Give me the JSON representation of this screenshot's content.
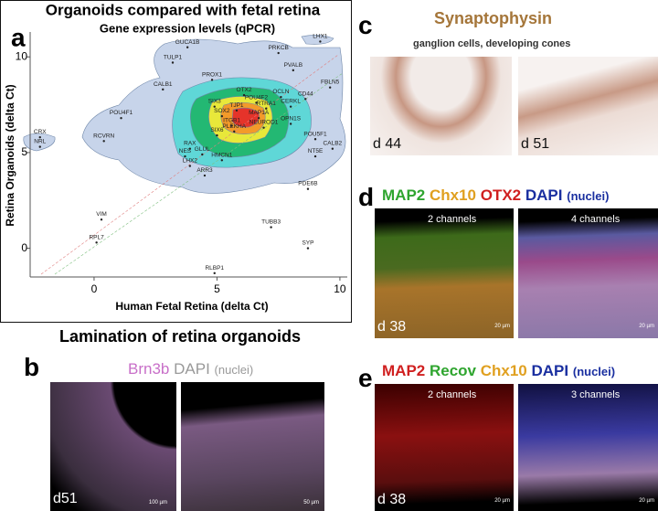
{
  "panel_labels": [
    "a",
    "b",
    "c",
    "d",
    "e"
  ],
  "chart_data": {
    "type": "scatter",
    "title": "Organoids compared with fetal retina",
    "subtitle": "Gene expression levels (qPCR)",
    "x_label": "Human Fetal Retina (delta Ct)",
    "y_label": "Retina Organoids (delta Ct)",
    "xlim": [
      -2.6,
      10.3
    ],
    "ylim": [
      -1.5,
      11.3
    ],
    "xticks": [
      0,
      5,
      10
    ],
    "yticks": [
      0,
      5,
      10
    ],
    "grid": false,
    "color": "#222222",
    "points": [
      {
        "label": "GUCA1B",
        "x": 3.8,
        "y": 10.5
      },
      {
        "label": "LHX1",
        "x": 9.2,
        "y": 10.8
      },
      {
        "label": "PRKCB",
        "x": 7.5,
        "y": 10.2
      },
      {
        "label": "TULP1",
        "x": 3.2,
        "y": 9.7
      },
      {
        "label": "PVALB",
        "x": 8.1,
        "y": 9.3
      },
      {
        "label": "CALB1",
        "x": 2.8,
        "y": 8.3
      },
      {
        "label": "PROX1",
        "x": 4.8,
        "y": 8.8
      },
      {
        "label": "FBLN5",
        "x": 9.6,
        "y": 8.4
      },
      {
        "label": "OCLN",
        "x": 7.6,
        "y": 7.9
      },
      {
        "label": "CD44",
        "x": 8.6,
        "y": 7.8
      },
      {
        "label": "OTX2",
        "x": 6.1,
        "y": 8.0
      },
      {
        "label": "POU4F2",
        "x": 6.6,
        "y": 7.6
      },
      {
        "label": "SIX3",
        "x": 4.9,
        "y": 7.4
      },
      {
        "label": "TJP1",
        "x": 5.8,
        "y": 7.2
      },
      {
        "label": "CERKL",
        "x": 8.0,
        "y": 7.4
      },
      {
        "label": "RTRA1",
        "x": 7.0,
        "y": 7.3
      },
      {
        "label": "SOX2",
        "x": 5.2,
        "y": 6.9
      },
      {
        "label": "MAP1A",
        "x": 6.7,
        "y": 6.8
      },
      {
        "label": "POU4F1",
        "x": 1.1,
        "y": 6.8
      },
      {
        "label": "OPN1S",
        "x": 8.0,
        "y": 6.5
      },
      {
        "label": "ITGB1",
        "x": 5.6,
        "y": 6.4
      },
      {
        "label": "NEUROD1",
        "x": 6.9,
        "y": 6.3
      },
      {
        "label": "SIX6",
        "x": 5.0,
        "y": 5.9
      },
      {
        "label": "PLEKHA",
        "x": 5.7,
        "y": 6.1
      },
      {
        "label": "POU5F1",
        "x": 9.0,
        "y": 5.7
      },
      {
        "label": "CRX",
        "x": -2.2,
        "y": 5.8
      },
      {
        "label": "NRL",
        "x": -2.2,
        "y": 5.3
      },
      {
        "label": "RCVRN",
        "x": 0.4,
        "y": 5.6
      },
      {
        "label": "RAX",
        "x": 3.9,
        "y": 5.2
      },
      {
        "label": "GLUL",
        "x": 4.4,
        "y": 4.9
      },
      {
        "label": "NES",
        "x": 3.7,
        "y": 4.8
      },
      {
        "label": "HMCN1",
        "x": 5.2,
        "y": 4.6
      },
      {
        "label": "CALB2",
        "x": 9.7,
        "y": 5.2
      },
      {
        "label": "NT5E",
        "x": 9.0,
        "y": 4.8
      },
      {
        "label": "LHX2",
        "x": 3.9,
        "y": 4.3
      },
      {
        "label": "ARR3",
        "x": 4.5,
        "y": 3.8
      },
      {
        "label": "PDE6B",
        "x": 8.7,
        "y": 3.1
      },
      {
        "label": "VIM",
        "x": 0.3,
        "y": 1.5
      },
      {
        "label": "TUBB3",
        "x": 7.2,
        "y": 1.1
      },
      {
        "label": "RPL7",
        "x": 0.1,
        "y": 0.3
      },
      {
        "label": "SYP",
        "x": 8.7,
        "y": 0.0
      },
      {
        "label": "RLBP1",
        "x": 4.9,
        "y": -1.3
      }
    ]
  },
  "lamination_title": "Lamination of retina organoids",
  "panel_b": {
    "stains": [
      "Brn3b",
      "DAPI",
      "(nuclei)"
    ],
    "day": "d51",
    "scale_bars": [
      "100 µm",
      "50 µm"
    ]
  },
  "panel_c": {
    "title": "Synaptophysin",
    "subtitle": "ganglion cells, developing cones",
    "days": [
      "d 44",
      "d 51"
    ]
  },
  "panel_d": {
    "stains": [
      "MAP2",
      "Chx10",
      "OTX2",
      "DAPI",
      "(nuclei)"
    ],
    "channels": [
      "2 channels",
      "4 channels"
    ],
    "day": "d 38",
    "scale_bars": [
      "20 µm",
      "20 µm"
    ]
  },
  "panel_e": {
    "stains": [
      "MAP2",
      "Recov",
      "Chx10",
      "DAPI",
      "(nuclei)"
    ],
    "channels": [
      "2 channels",
      "3 channels"
    ],
    "day": "d 38",
    "scale_bars": [
      "20 µm",
      "20 µm"
    ]
  }
}
